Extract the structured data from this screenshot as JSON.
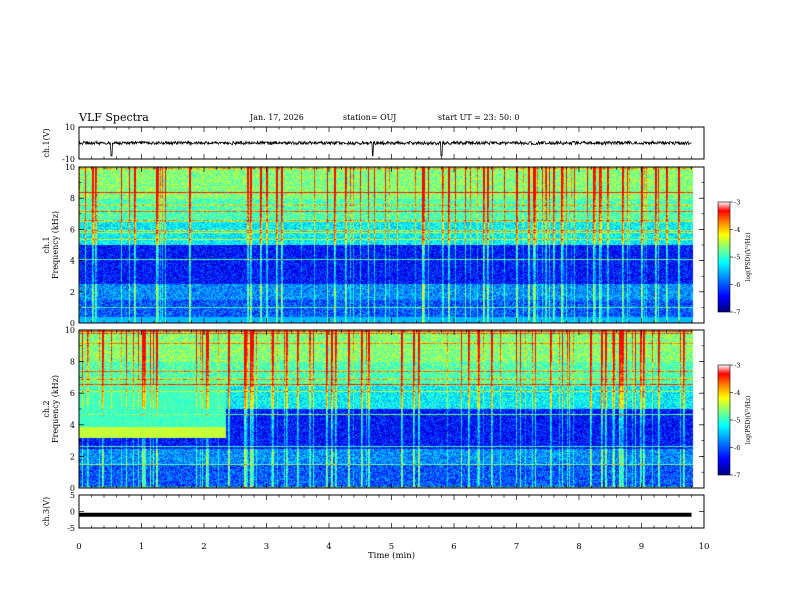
{
  "header": {
    "title": "VLF Spectra",
    "date": "Jan. 17, 2026",
    "station": "station= OUJ",
    "start": "start  UT =  23: 50: 0"
  },
  "chart_data": [
    {
      "type": "line",
      "name": "ch1-waveform",
      "ylabel": "ch.1(V)",
      "ylim": [
        -10,
        10
      ],
      "y_ticks": [
        "10",
        "-10"
      ],
      "x": [
        0,
        9.8
      ],
      "mean_value": 0,
      "description_values": {
        "baseline": 0,
        "noise_amplitude": 2,
        "spike_times": [
          0.52,
          4.7,
          5.8
        ]
      }
    },
    {
      "type": "heatmap",
      "name": "ch1-spectrogram",
      "ylabel": "Frequency (kHz)",
      "channel_label": "ch.1",
      "ylim": [
        0,
        10
      ],
      "y_ticks": [
        "0",
        "2",
        "4",
        "6",
        "8",
        "10"
      ],
      "xlim": [
        0,
        10
      ],
      "colorbar": {
        "label": "log(PSD)(V²/Hz)",
        "range": [
          -7,
          -3
        ],
        "ticks": [
          "-3",
          "-4",
          "-5",
          "-6",
          "-7"
        ]
      }
    },
    {
      "type": "heatmap",
      "name": "ch2-spectrogram",
      "ylabel": "Frequency (kHz)",
      "channel_label": "ch.2",
      "ylim": [
        0,
        10
      ],
      "y_ticks": [
        "0",
        "2",
        "4",
        "6",
        "8",
        "10"
      ],
      "xlim": [
        0,
        10
      ],
      "colorbar": {
        "label": "log(PSD)(V²/Hz)",
        "range": [
          -7,
          -3
        ],
        "ticks": [
          "-3",
          "-4",
          "-5",
          "-6",
          "-7"
        ]
      }
    },
    {
      "type": "line",
      "name": "ch3-waveform",
      "ylabel": "ch.3(V)",
      "ylim": [
        -5,
        5
      ],
      "y_ticks": [
        "5",
        "0",
        "-5"
      ],
      "constant_value": -1,
      "x": [
        0,
        9.8
      ]
    }
  ],
  "x_axis": {
    "label": "Time  (min)",
    "ticks": [
      "0",
      "1",
      "2",
      "3",
      "4",
      "5",
      "6",
      "7",
      "8",
      "9",
      "10"
    ]
  },
  "colors": {
    "palette": [
      "#00007f",
      "#0000ff",
      "#007fff",
      "#00ffff",
      "#7fff7f",
      "#ffff00",
      "#ff7f00",
      "#ff0000",
      "#ffffff"
    ]
  }
}
